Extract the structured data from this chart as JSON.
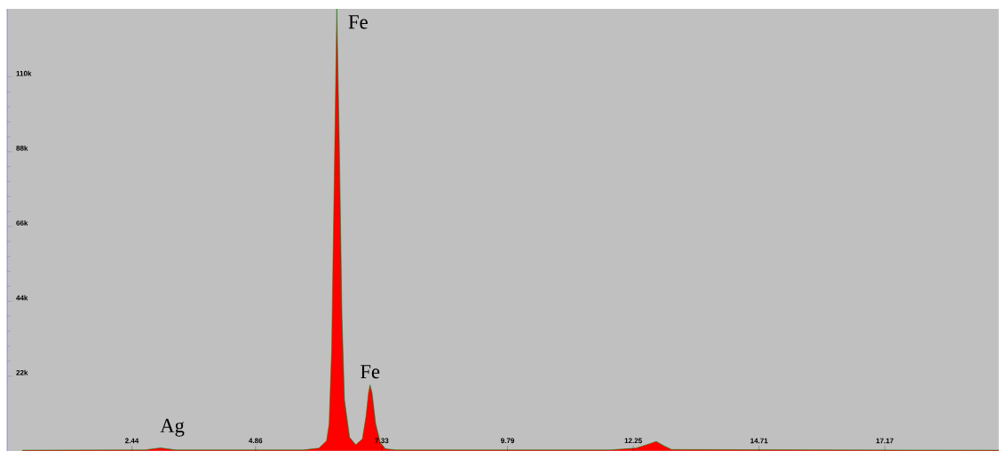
{
  "chart_data": {
    "type": "area",
    "x": [
      0.3,
      2.7,
      2.9,
      3.0,
      3.1,
      3.3,
      5.8,
      6.1,
      6.25,
      6.3,
      6.35,
      6.4,
      6.45,
      6.5,
      6.55,
      6.6,
      6.7,
      6.82,
      6.95,
      7.02,
      7.07,
      7.1,
      7.14,
      7.21,
      7.3,
      7.4,
      7.6,
      11.8,
      12.3,
      12.55,
      12.7,
      12.85,
      13.0,
      19.4
    ],
    "values": [
      200,
      300,
      700,
      900,
      700,
      300,
      300,
      800,
      3000,
      8000,
      30000,
      80000,
      130000,
      90000,
      40000,
      15000,
      4000,
      1800,
      3500,
      10000,
      17000,
      19400,
      17000,
      8000,
      2500,
      600,
      300,
      300,
      800,
      2000,
      2800,
      1500,
      400,
      200
    ],
    "color": "#ff0000",
    "xlim": [
      0,
      19.4
    ],
    "ylim": [
      0,
      130000
    ],
    "xticks": [
      2.44,
      4.86,
      7.33,
      9.79,
      12.25,
      14.71,
      17.17
    ],
    "yticks": [
      {
        "value": 22000,
        "label": "22k"
      },
      {
        "value": 44000,
        "label": "44k"
      },
      {
        "value": 66000,
        "label": "66k"
      },
      {
        "value": 88000,
        "label": "88k"
      },
      {
        "value": 110000,
        "label": "110k"
      }
    ],
    "annotations": [
      {
        "text": "Fe",
        "x": 6.45,
        "y": 130000
      },
      {
        "text": "Fe",
        "x": 7.1,
        "y": 19400
      },
      {
        "text": "Ag",
        "x": 3.0,
        "y": 900
      }
    ],
    "grid": false
  }
}
